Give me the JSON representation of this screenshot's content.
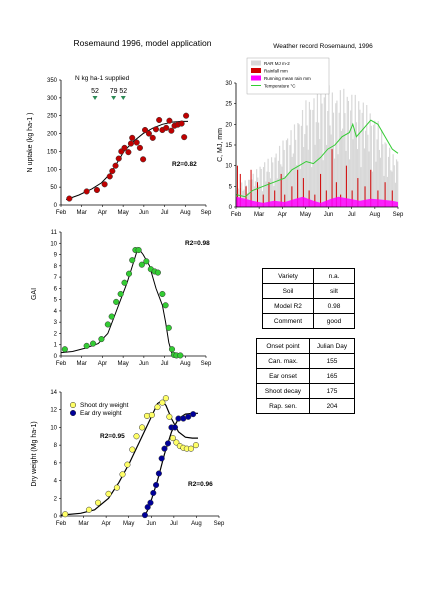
{
  "page": {
    "title": "Rosemaund 1996, model application"
  },
  "chart_data": [
    {
      "id": "n_uptake",
      "type": "scatter",
      "ylabel": "N uptake (kg ha-1 )",
      "ylim": [
        0,
        350
      ],
      "yticks": [
        0,
        50,
        100,
        150,
        200,
        250,
        300,
        350
      ],
      "xticks": [
        "Feb",
        "Mar",
        "Apr",
        "May",
        "Jun",
        "Jul",
        "Aug",
        "Sep"
      ],
      "xlim": [
        32,
        258
      ],
      "annotation_title": "N kg ha-1 supplied",
      "applications": [
        {
          "day": 85,
          "label": "52"
        },
        {
          "day": 114,
          "label": "79"
        },
        {
          "day": 129,
          "label": "52"
        }
      ],
      "r2_label": "R2=0.82",
      "point_color": "#c00000",
      "observed": [
        [
          45,
          18
        ],
        [
          72,
          38
        ],
        [
          88,
          42
        ],
        [
          100,
          58
        ],
        [
          108,
          80
        ],
        [
          112,
          95
        ],
        [
          117,
          110
        ],
        [
          122,
          130
        ],
        [
          126,
          150
        ],
        [
          131,
          160
        ],
        [
          137,
          148
        ],
        [
          141,
          172
        ],
        [
          143,
          188
        ],
        [
          150,
          175
        ],
        [
          155,
          160
        ],
        [
          160,
          128
        ],
        [
          163,
          210
        ],
        [
          169,
          200
        ],
        [
          175,
          188
        ],
        [
          180,
          212
        ],
        [
          185,
          238
        ],
        [
          190,
          210
        ],
        [
          196,
          216
        ],
        [
          201,
          236
        ],
        [
          204,
          208
        ],
        [
          209,
          222
        ],
        [
          214,
          225
        ],
        [
          220,
          228
        ],
        [
          224,
          190
        ],
        [
          227,
          250
        ]
      ],
      "model": [
        [
          40,
          15
        ],
        [
          60,
          28
        ],
        [
          80,
          45
        ],
        [
          95,
          62
        ],
        [
          110,
          90
        ],
        [
          120,
          120
        ],
        [
          130,
          150
        ],
        [
          145,
          178
        ],
        [
          160,
          200
        ],
        [
          175,
          215
        ],
        [
          190,
          226
        ],
        [
          205,
          232
        ],
        [
          220,
          234
        ],
        [
          230,
          234
        ]
      ]
    },
    {
      "id": "weather",
      "type": "area",
      "title": "Weather record Rosemaund, 1996",
      "ylabel": "C, MJ, mm",
      "ylim": [
        0,
        30
      ],
      "yticks": [
        0,
        5,
        10,
        15,
        20,
        25,
        30
      ],
      "xticks": [
        "Feb",
        "Mar",
        "Apr",
        "May",
        "Jun",
        "Jul",
        "Aug",
        "Sep"
      ],
      "xlim": [
        32,
        258
      ],
      "legend": [
        "RAR MJ m-2",
        "Rainfall mm",
        "Running mean rain mm",
        "Temperature °C"
      ],
      "colors": [
        "#d8d8d8",
        "#d00000",
        "#ff00ff",
        "#33cc33"
      ],
      "radiation_envelope": [
        [
          32,
          4
        ],
        [
          40,
          6
        ],
        [
          50,
          7
        ],
        [
          60,
          9
        ],
        [
          70,
          11
        ],
        [
          80,
          12
        ],
        [
          90,
          14
        ],
        [
          100,
          17
        ],
        [
          110,
          19
        ],
        [
          120,
          22
        ],
        [
          130,
          26
        ],
        [
          140,
          27
        ],
        [
          150,
          29
        ],
        [
          160,
          30
        ],
        [
          170,
          27
        ],
        [
          180,
          29
        ],
        [
          190,
          28
        ],
        [
          200,
          27
        ],
        [
          210,
          26
        ],
        [
          220,
          23
        ],
        [
          230,
          21
        ],
        [
          240,
          17
        ],
        [
          250,
          13
        ],
        [
          258,
          12
        ]
      ],
      "rain_events": [
        [
          34,
          10
        ],
        [
          38,
          8
        ],
        [
          46,
          5
        ],
        [
          53,
          9
        ],
        [
          62,
          6
        ],
        [
          70,
          3
        ],
        [
          78,
          6
        ],
        [
          86,
          4
        ],
        [
          95,
          8
        ],
        [
          100,
          3
        ],
        [
          110,
          5
        ],
        [
          118,
          9
        ],
        [
          126,
          7
        ],
        [
          134,
          4
        ],
        [
          142,
          3
        ],
        [
          150,
          8
        ],
        [
          158,
          4
        ],
        [
          166,
          14
        ],
        [
          172,
          6
        ],
        [
          178,
          3
        ],
        [
          186,
          10
        ],
        [
          194,
          4
        ],
        [
          202,
          7
        ],
        [
          212,
          5
        ],
        [
          220,
          9
        ],
        [
          230,
          4
        ],
        [
          240,
          6
        ],
        [
          250,
          4
        ]
      ],
      "running_mean_rain": [
        [
          32,
          2.5
        ],
        [
          45,
          2
        ],
        [
          55,
          1.5
        ],
        [
          70,
          1
        ],
        [
          85,
          1.5
        ],
        [
          100,
          1.2
        ],
        [
          115,
          2
        ],
        [
          125,
          2.5
        ],
        [
          140,
          1.5
        ],
        [
          150,
          1
        ],
        [
          165,
          2
        ],
        [
          175,
          2.5
        ],
        [
          190,
          2
        ],
        [
          205,
          1.5
        ],
        [
          220,
          2
        ],
        [
          235,
          1.8
        ],
        [
          250,
          1.5
        ],
        [
          258,
          1.2
        ]
      ],
      "temperature": [
        [
          32,
          3
        ],
        [
          45,
          2.5
        ],
        [
          55,
          4
        ],
        [
          70,
          5
        ],
        [
          85,
          6
        ],
        [
          100,
          7
        ],
        [
          110,
          9
        ],
        [
          120,
          10
        ],
        [
          130,
          11
        ],
        [
          140,
          10.5
        ],
        [
          150,
          12
        ],
        [
          160,
          14
        ],
        [
          170,
          15
        ],
        [
          180,
          17
        ],
        [
          190,
          18
        ],
        [
          195,
          20
        ],
        [
          200,
          17
        ],
        [
          210,
          19
        ],
        [
          220,
          21
        ],
        [
          230,
          20
        ],
        [
          240,
          17
        ],
        [
          250,
          14
        ],
        [
          258,
          13
        ]
      ]
    },
    {
      "id": "gai",
      "type": "scatter",
      "ylabel": "GAI",
      "ylim": [
        0,
        11
      ],
      "yticks": [
        0,
        1,
        2,
        3,
        4,
        5,
        6,
        7,
        8,
        9,
        10,
        11
      ],
      "xticks": [
        "Feb",
        "Mar",
        "Apr",
        "May",
        "Jun",
        "Jul",
        "Aug",
        "Sep"
      ],
      "xlim": [
        32,
        258
      ],
      "r2_label": "R2=0.98",
      "point_color": "#33cc33",
      "observed": [
        [
          38,
          0.6
        ],
        [
          72,
          0.9
        ],
        [
          82,
          1.1
        ],
        [
          95,
          1.5
        ],
        [
          105,
          2.8
        ],
        [
          111,
          3.5
        ],
        [
          118,
          4.8
        ],
        [
          125,
          5.5
        ],
        [
          131,
          6.5
        ],
        [
          138,
          7.3
        ],
        [
          143,
          8.5
        ],
        [
          148,
          9.4
        ],
        [
          153,
          9.4
        ],
        [
          158,
          8.1
        ],
        [
          165,
          8.4
        ],
        [
          172,
          7.7
        ],
        [
          178,
          7.5
        ],
        [
          183,
          7.4
        ],
        [
          190,
          5.5
        ],
        [
          195,
          4.5
        ],
        [
          200,
          2.5
        ],
        [
          205,
          0.6
        ],
        [
          208,
          0.1
        ],
        [
          212,
          0.05
        ],
        [
          218,
          0.05
        ]
      ],
      "model": [
        [
          32,
          0.3
        ],
        [
          50,
          0.4
        ],
        [
          70,
          0.7
        ],
        [
          90,
          1.1
        ],
        [
          105,
          2
        ],
        [
          115,
          3.5
        ],
        [
          125,
          5
        ],
        [
          135,
          6.5
        ],
        [
          145,
          8.3
        ],
        [
          152,
          9.6
        ],
        [
          160,
          9
        ],
        [
          170,
          8
        ],
        [
          180,
          6
        ],
        [
          190,
          4.5
        ],
        [
          195,
          3
        ],
        [
          200,
          1.2
        ],
        [
          205,
          0.2
        ],
        [
          212,
          0.05
        ],
        [
          220,
          0
        ]
      ]
    },
    {
      "id": "dry_weight",
      "type": "scatter",
      "ylabel": "Dry weight (Mg ha-1)",
      "ylim": [
        0,
        14
      ],
      "yticks": [
        0,
        2,
        4,
        6,
        8,
        10,
        12,
        14
      ],
      "xticks": [
        "Feb",
        "Mar",
        "Apr",
        "May",
        "Jun",
        "Jul",
        "Aug",
        "Sep"
      ],
      "xlim": [
        32,
        258
      ],
      "series": [
        {
          "name": "Shoot dry weight",
          "color": "#ffff66",
          "observed": [
            [
              38,
              0.2
            ],
            [
              72,
              0.7
            ],
            [
              85,
              1.5
            ],
            [
              100,
              2.5
            ],
            [
              112,
              3.2
            ],
            [
              120,
              4.7
            ],
            [
              127,
              5.8
            ],
            [
              134,
              7.5
            ],
            [
              140,
              9.0
            ],
            [
              148,
              10.0
            ],
            [
              155,
              11.3
            ],
            [
              162,
              11.4
            ],
            [
              170,
              12.3
            ],
            [
              177,
              12.8
            ],
            [
              182,
              13.3
            ],
            [
              187,
              11.2
            ],
            [
              192,
              8.8
            ],
            [
              197,
              8.3
            ],
            [
              202,
              7.9
            ],
            [
              207,
              7.7
            ],
            [
              212,
              7.6
            ],
            [
              218,
              7.6
            ],
            [
              225,
              8.0
            ]
          ],
          "model": [
            [
              32,
              0.1
            ],
            [
              60,
              0.3
            ],
            [
              80,
              0.7
            ],
            [
              100,
              2
            ],
            [
              115,
              3.8
            ],
            [
              130,
              6
            ],
            [
              145,
              8.5
            ],
            [
              160,
              11
            ],
            [
              170,
              12.7
            ],
            [
              176,
              13
            ],
            [
              182,
              12.5
            ],
            [
              190,
              11
            ],
            [
              200,
              9.5
            ],
            [
              210,
              8.9
            ],
            [
              220,
              8.8
            ],
            [
              228,
              8.8
            ]
          ]
        },
        {
          "name": "Ear dry weight",
          "color": "#000099",
          "observed": [
            [
              152,
              0.1
            ],
            [
              156,
              1
            ],
            [
              160,
              1.5
            ],
            [
              164,
              2.6
            ],
            [
              168,
              3.5
            ],
            [
              172,
              4.8
            ],
            [
              176,
              6.5
            ],
            [
              180,
              7.6
            ],
            [
              185,
              8.2
            ],
            [
              190,
              10.0
            ],
            [
              195,
              10.0
            ],
            [
              200,
              11.0
            ],
            [
              207,
              11.0
            ],
            [
              214,
              11.2
            ],
            [
              221,
              11.5
            ]
          ],
          "model": [
            [
              150,
              0
            ],
            [
              155,
              0.5
            ],
            [
              160,
              1.5
            ],
            [
              170,
              4
            ],
            [
              180,
              7
            ],
            [
              190,
              9.5
            ],
            [
              200,
              11
            ],
            [
              210,
              11.5
            ],
            [
              220,
              11.6
            ],
            [
              228,
              11.6
            ]
          ]
        }
      ],
      "r2_labels": [
        "R2=0.95",
        "R2=0.96"
      ]
    }
  ],
  "info_table": {
    "rows": [
      [
        "Variety",
        "n.a."
      ],
      [
        "Soil",
        "silt"
      ],
      [
        "Model R2",
        "0.98"
      ],
      [
        "Comment",
        "good"
      ]
    ]
  },
  "onset_table": {
    "header": [
      "Onset point",
      "Julian Day"
    ],
    "rows": [
      [
        "Can. max.",
        "155"
      ],
      [
        "Ear onset",
        "165"
      ],
      [
        "Shoot decay",
        "175"
      ],
      [
        "Rap. sen.",
        "204"
      ]
    ]
  }
}
